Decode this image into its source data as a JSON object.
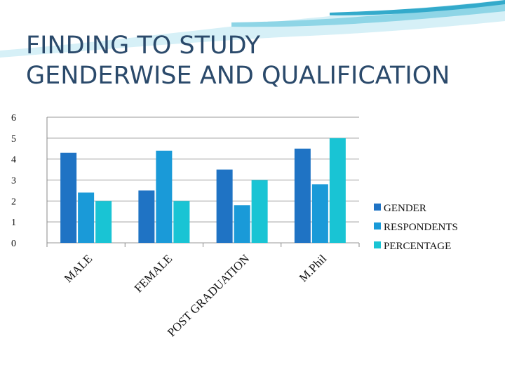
{
  "slide": {
    "title_line1": "FINDING TO STUDY",
    "title_line2": "GENDERWISE AND QUALIFICATION"
  },
  "colors": {
    "title": "#2b4a6b",
    "wave_light": "#d6f0f7",
    "wave_mid": "#8ed5e6",
    "wave_dark": "#33aacb"
  },
  "chart_data": {
    "type": "bar",
    "categories": [
      "MALE",
      "FEMALE",
      "POST GRADUATION",
      "M.Phil"
    ],
    "series": [
      {
        "name": "GENDER",
        "color": "#1f73c4",
        "values": [
          4.3,
          2.5,
          3.5,
          4.5
        ]
      },
      {
        "name": "RESPONDENTS",
        "color": "#1a9ad8",
        "values": [
          2.4,
          4.4,
          1.8,
          2.8
        ]
      },
      {
        "name": "PERCENTAGE",
        "color": "#19c4d4",
        "values": [
          2.0,
          2.0,
          3.0,
          5.0
        ]
      }
    ],
    "ylim": [
      0,
      6
    ],
    "yticks": [
      "0",
      "1",
      "2",
      "3",
      "4",
      "5",
      "6"
    ],
    "grid": true,
    "legend_position": "right"
  }
}
